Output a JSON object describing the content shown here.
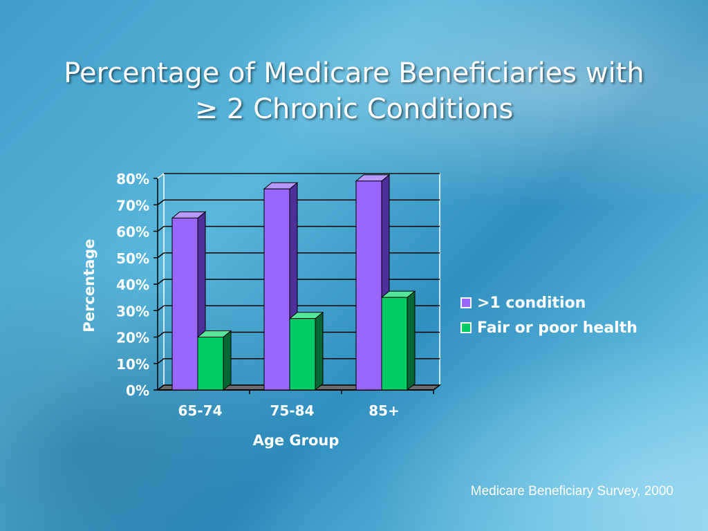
{
  "slide": {
    "title_line1": "Percentage of Medicare Beneficiaries with",
    "title_line2": "≥ 2 Chronic Conditions",
    "source": "Medicare Beneficiary Survey, 2000"
  },
  "chart_data": {
    "type": "bar",
    "categories": [
      "65-74",
      "75-84",
      "85+"
    ],
    "series": [
      {
        "name": ">1 condition",
        "values": [
          65,
          76,
          79
        ],
        "color": "#9966ff",
        "side_color": "#4d2f99",
        "top_color": "#b899ff"
      },
      {
        "name": "Fair or poor health",
        "values": [
          20,
          27,
          35
        ],
        "color": "#00cc66",
        "side_color": "#006633",
        "top_color": "#55e699"
      }
    ],
    "xlabel": "Age Group",
    "ylabel": "Percentage",
    "ylim": [
      0,
      80
    ],
    "yticks": [
      "0%",
      "10%",
      "20%",
      "30%",
      "40%",
      "50%",
      "60%",
      "70%",
      "80%"
    ],
    "grid": true,
    "legend_position": "right"
  }
}
